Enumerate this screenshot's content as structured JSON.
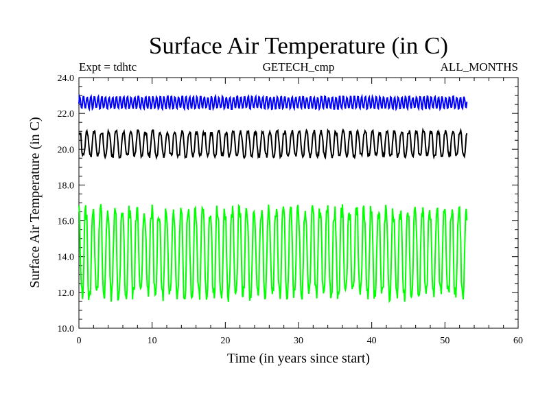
{
  "chart_data": {
    "type": "line",
    "title": "Surface Air Temperature (in C)",
    "expt_label": "Expt = tdhtc",
    "center_label": "GETECH_cmp",
    "right_label": "ALL_MONTHS",
    "xlabel": "Time (in years since start)",
    "ylabel": "Surface Air Temperature (in C)",
    "xlim": [
      0,
      60
    ],
    "ylim": [
      10.0,
      24.0
    ],
    "x_ticks": [
      "0",
      "10",
      "20",
      "30",
      "40",
      "50",
      "60"
    ],
    "y_ticks": [
      "10.0",
      "12.0",
      "14.0",
      "16.0",
      "18.0",
      "20.0",
      "22.0",
      "24.0"
    ],
    "x_range_of_data": [
      0,
      53
    ],
    "series": [
      {
        "name": "series-blue",
        "color": "#0000ff",
        "baseline": 22.6,
        "amplitude": 0.35,
        "cycles_per_year": 2
      },
      {
        "name": "series-black",
        "color": "#000000",
        "baseline": 20.3,
        "amplitude": 0.75,
        "cycles_per_year": 1
      },
      {
        "name": "series-green",
        "color": "#00ff00",
        "baseline": 14.2,
        "amplitude": 2.6,
        "cycles_per_year": 1
      }
    ]
  }
}
